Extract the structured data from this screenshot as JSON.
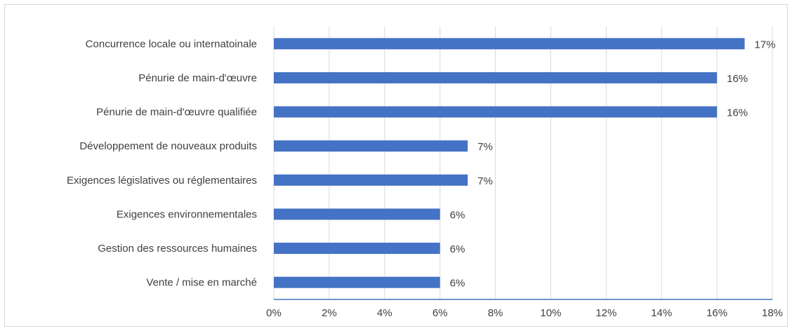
{
  "chart_data": {
    "type": "bar",
    "orientation": "horizontal",
    "title": "",
    "xlabel": "",
    "ylabel": "",
    "categories": [
      "Concurrence locale ou internatoinale",
      "Pénurie de main-d'œuvre",
      "Pénurie de main-d'œuvre qualifiée",
      "Développement de nouveaux produits",
      "Exigences législatives ou réglementaires",
      "Exigences environnementales",
      "Gestion des ressources humaines",
      "Vente / mise en marché"
    ],
    "values": [
      17,
      16,
      16,
      7,
      7,
      6,
      6,
      6
    ],
    "data_labels": [
      "17%",
      "16%",
      "16%",
      "7%",
      "7%",
      "6%",
      "6%",
      "6%"
    ],
    "xlim": [
      0,
      18
    ],
    "ticks": [
      0,
      2,
      4,
      6,
      8,
      10,
      12,
      14,
      16,
      18
    ],
    "tick_labels": [
      "0%",
      "2%",
      "4%",
      "6%",
      "8%",
      "10%",
      "12%",
      "14%",
      "16%",
      "18%"
    ],
    "grid": true,
    "legend": "none",
    "colors": {
      "bar": "#4472c4",
      "grid": "#d9d9d9",
      "axis": "#4472c4",
      "text": "#404040"
    }
  }
}
